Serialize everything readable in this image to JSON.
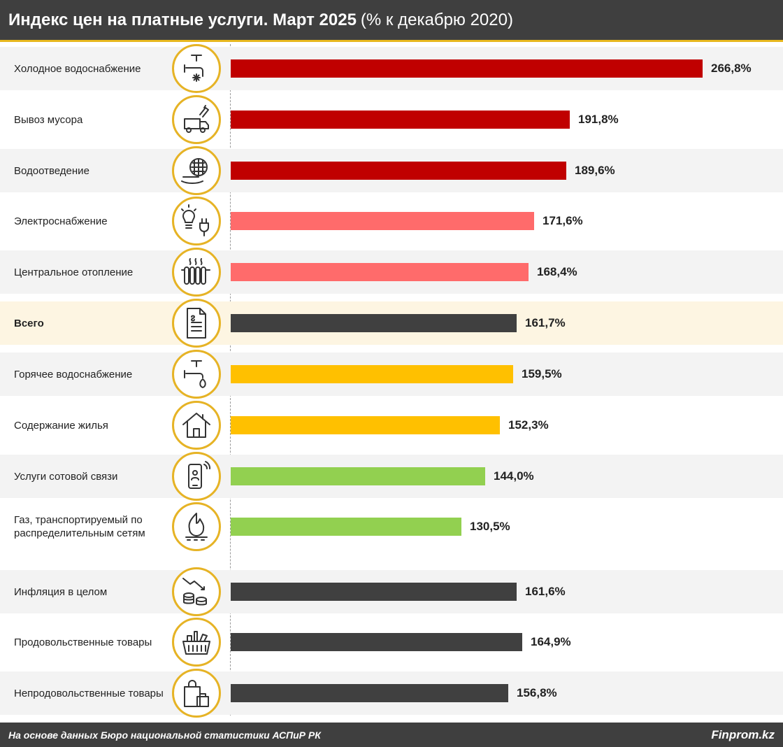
{
  "header": {
    "title_bold": "Индекс цен на платные услуги. Март 2025",
    "title_normal": "(% к декабрю 2020)"
  },
  "chart_data": {
    "type": "bar",
    "orientation": "horizontal",
    "title": "Индекс цен на платные услуги. Март 2025 (% к декабрю 2020)",
    "unit": "%",
    "categories": [
      "Холодное водоснабжение",
      "Вывоз мусора",
      "Водоотведение",
      "Электроснабжение",
      "Центральное отопление",
      "Всего",
      "Горячее водоснабжение",
      "Содержание жилья",
      "Услуги сотовой связи",
      "Газ, транспортируемый по распределительным сетям",
      "Инфляция в целом",
      "Продовольственные товары",
      "Непродовольственные товары"
    ],
    "values": [
      266.8,
      191.8,
      189.6,
      171.6,
      168.4,
      161.7,
      159.5,
      152.3,
      144.0,
      130.5,
      161.6,
      164.9,
      156.8
    ],
    "value_labels": [
      "266,8%",
      "191,8%",
      "189,6%",
      "171,6%",
      "168,4%",
      "161,7%",
      "159,5%",
      "152,3%",
      "144,0%",
      "130,5%",
      "161,6%",
      "164,9%",
      "156,8%"
    ],
    "icons": [
      "cold-water-tap-icon",
      "garbage-truck-icon",
      "sewage-pipe-icon",
      "electricity-icon",
      "radiator-icon",
      "document-icon",
      "hot-water-tap-icon",
      "house-icon",
      "mobile-phone-icon",
      "gas-flame-icon",
      "inflation-coins-icon",
      "grocery-basket-icon",
      "shopping-bag-icon"
    ],
    "colors": [
      "#c00000",
      "#c00000",
      "#c00000",
      "#ff6b6b",
      "#ff6b6b",
      "#404040",
      "#ffc000",
      "#ffc000",
      "#92d050",
      "#92d050",
      "#404040",
      "#404040",
      "#404040"
    ],
    "xlim": [
      0,
      266.8
    ]
  },
  "footer": {
    "source": "На основе данных Бюро национальной статистики АСПиР РК",
    "brand": "Finprom.kz"
  }
}
